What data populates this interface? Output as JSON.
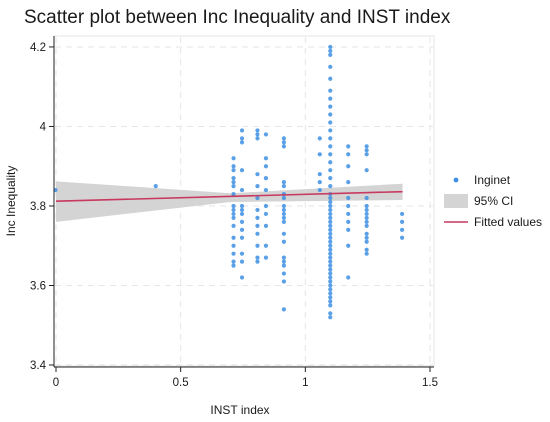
{
  "chart_data": {
    "type": "scatter",
    "title": "Scatter plot between Inc Inequality and INST index",
    "xlabel": "INST index",
    "ylabel": "Inc Inequality",
    "xlim": [
      0,
      1.5
    ],
    "ylim": [
      3.4,
      4.22
    ],
    "xticks": [
      "0",
      "0.5",
      "1",
      "1.5"
    ],
    "yticks": [
      "3.4",
      "3.6",
      "3.8",
      "4",
      "4.2"
    ],
    "grid": true,
    "legend_position": "right",
    "colors": {
      "points": "#3d8fe3",
      "fit": "#c8385f",
      "ci": "#d4d4d4"
    },
    "legend": [
      {
        "label": "Inginet",
        "kind": "marker"
      },
      {
        "label": "95% CI",
        "kind": "band"
      },
      {
        "label": "Fitted values",
        "kind": "line"
      }
    ],
    "fitted_line": {
      "x": [
        0,
        1.39
      ],
      "y": [
        3.812,
        3.836
      ]
    },
    "ci_band": {
      "x": [
        0,
        0.7,
        1.39
      ],
      "lower": [
        3.76,
        3.81,
        3.815
      ],
      "upper": [
        3.862,
        3.832,
        3.856
      ]
    },
    "clusters": [
      {
        "x": 0.01,
        "y": [
          3.84
        ]
      },
      {
        "x": 0.4,
        "y": [
          3.85
        ]
      },
      {
        "x": 0.7,
        "y": [
          3.92,
          3.9,
          3.89,
          3.87,
          3.86,
          3.85,
          3.83,
          3.8,
          3.79,
          3.78,
          3.77,
          3.75,
          3.72,
          3.7,
          3.68,
          3.66,
          3.65
        ]
      },
      {
        "x": 0.75,
        "y": [
          3.99,
          3.97,
          3.96,
          3.89,
          3.84,
          3.8,
          3.79,
          3.78,
          3.76,
          3.74,
          3.72,
          3.68,
          3.66,
          3.62
        ]
      },
      {
        "x": 0.8,
        "y": [
          3.99,
          3.98,
          3.97,
          3.88,
          3.85,
          3.82,
          3.79,
          3.77,
          3.75,
          3.73,
          3.7,
          3.67,
          3.66
        ]
      },
      {
        "x": 0.85,
        "y": [
          3.98,
          3.92,
          3.9,
          3.87,
          3.84,
          3.8,
          3.78,
          3.75,
          3.7,
          3.67
        ]
      },
      {
        "x": 0.91,
        "y": [
          3.97,
          3.96,
          3.95,
          3.86,
          3.85,
          3.83,
          3.82,
          3.8,
          3.79,
          3.78,
          3.77,
          3.76,
          3.73,
          3.71,
          3.67,
          3.66,
          3.65,
          3.63,
          3.61,
          3.54
        ]
      },
      {
        "x": 1.07,
        "y": [
          3.97,
          3.93,
          3.88,
          3.86,
          3.84
        ]
      },
      {
        "x": 1.1,
        "y": [
          4.2,
          4.19,
          4.18,
          4.15,
          4.12,
          4.09,
          4.07,
          4.05,
          4.03,
          4.01,
          3.99,
          3.97,
          3.95,
          3.93,
          3.91,
          3.89,
          3.87,
          3.85,
          3.83,
          3.82,
          3.81,
          3.8,
          3.79,
          3.78,
          3.77,
          3.76,
          3.75,
          3.74,
          3.73,
          3.72,
          3.71,
          3.7,
          3.69,
          3.68,
          3.67,
          3.66,
          3.65,
          3.64,
          3.63,
          3.62,
          3.61,
          3.6,
          3.59,
          3.58,
          3.57,
          3.56,
          3.55,
          3.53,
          3.52
        ]
      },
      {
        "x": 1.16,
        "y": [
          3.95,
          3.93,
          3.9,
          3.86,
          3.82,
          3.8,
          3.78,
          3.76,
          3.74,
          3.7,
          3.62
        ]
      },
      {
        "x": 1.25,
        "y": [
          3.95,
          3.94,
          3.93,
          3.89,
          3.82,
          3.8,
          3.79,
          3.78,
          3.77,
          3.76,
          3.75,
          3.73,
          3.72,
          3.71,
          3.69,
          3.68
        ]
      },
      {
        "x": 1.38,
        "y": [
          3.78,
          3.76,
          3.74,
          3.72
        ]
      }
    ]
  }
}
